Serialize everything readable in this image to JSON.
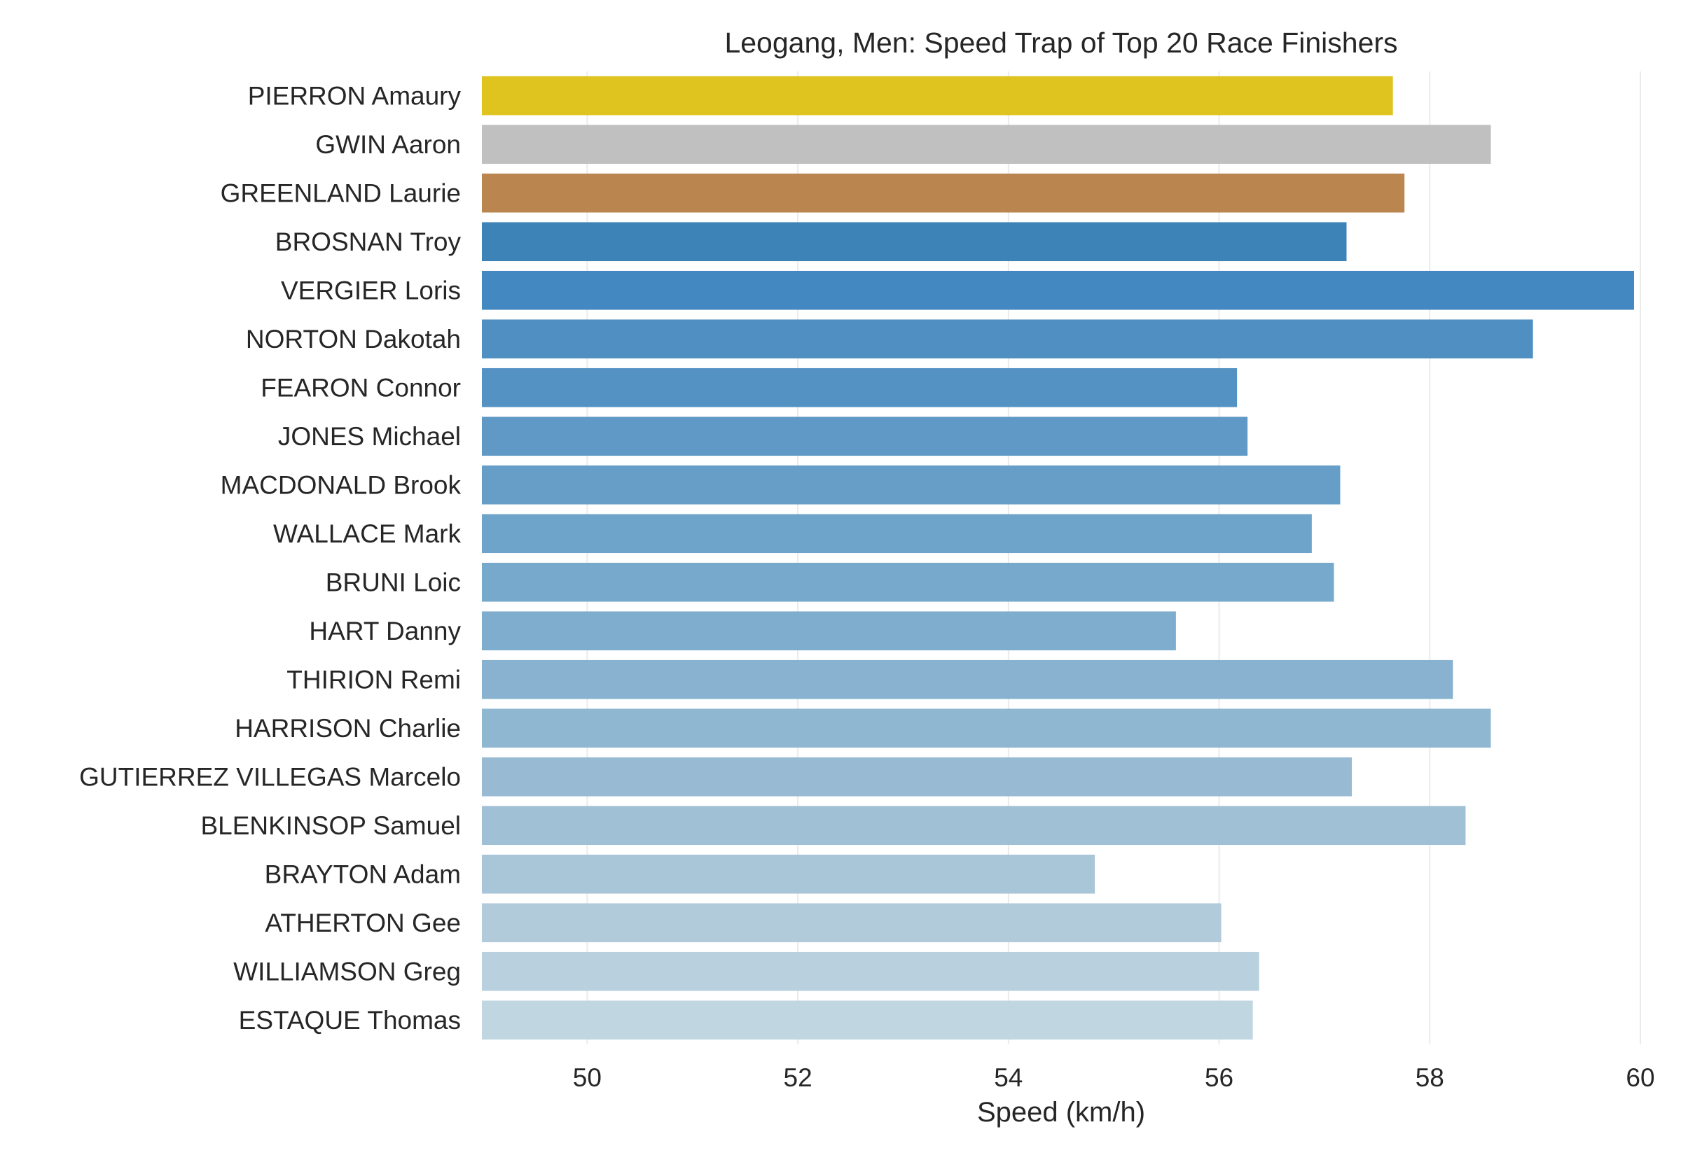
{
  "chart_data": {
    "type": "bar",
    "orientation": "horizontal",
    "title": "Leogang, Men: Speed Trap of Top 20 Race Finishers",
    "xlabel": "Speed (km/h)",
    "ylabel": "",
    "xlim": [
      49,
      60
    ],
    "xticks": [
      50,
      52,
      54,
      56,
      58,
      60
    ],
    "grid": "vertical",
    "categories": [
      "PIERRON Amaury",
      "GWIN Aaron",
      "GREENLAND Laurie",
      "BROSNAN Troy",
      "VERGIER Loris",
      "NORTON Dakotah",
      "FEARON Connor",
      "JONES Michael",
      "MACDONALD Brook",
      "WALLACE Mark",
      "BRUNI Loic",
      "HART Danny",
      "THIRION Remi",
      "HARRISON Charlie",
      "GUTIERREZ VILLEGAS Marcelo",
      "BLENKINSOP Samuel",
      "BRAYTON Adam",
      "ATHERTON Gee",
      "WILLIAMSON Greg",
      "ESTAQUE Thomas"
    ],
    "values": [
      57.65,
      58.58,
      57.76,
      57.21,
      59.94,
      58.98,
      56.17,
      56.27,
      57.15,
      56.88,
      57.09,
      55.59,
      58.22,
      58.58,
      57.26,
      58.34,
      54.82,
      56.02,
      56.38,
      56.32
    ],
    "colors": [
      "#dfc31f",
      "#c0c0c0",
      "#ba854f",
      "#3e83b8",
      "#4488c2",
      "#4f8fc2",
      "#5492c3",
      "#6099c5",
      "#669ec7",
      "#6fa4ca",
      "#76a9cc",
      "#7eadcd",
      "#88b2cf",
      "#90b7d1",
      "#98bbd3",
      "#a0c0d5",
      "#a9c5d8",
      "#b1cbdb",
      "#b9d1de",
      "#c0d6e1"
    ]
  }
}
